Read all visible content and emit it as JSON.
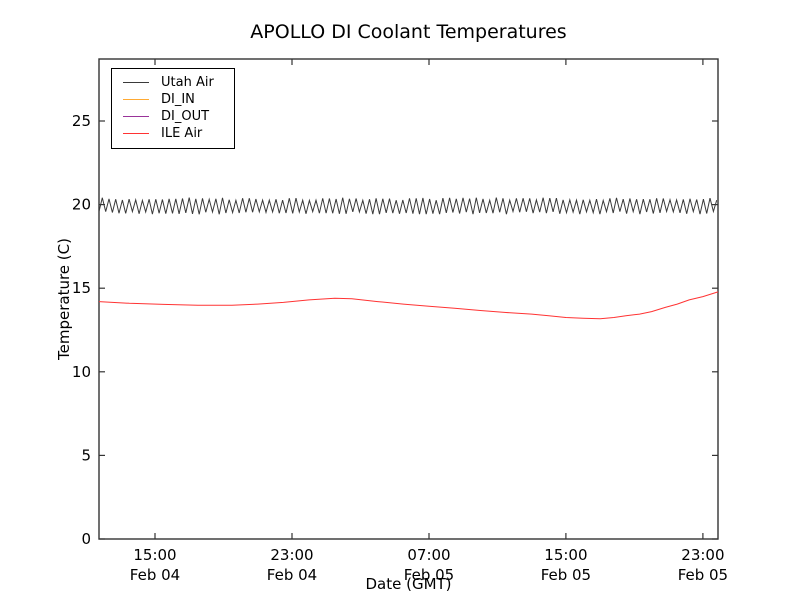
{
  "chart_data": {
    "type": "line",
    "title": "APOLLO DI Coolant Temperatures",
    "xlabel": "Date (GMT)",
    "ylabel": "Temperature (C)",
    "x_axis_unit": "hours since Feb 04 00:00 GMT",
    "xlim": [
      11.73,
      47.88
    ],
    "ylim": [
      0,
      28.71
    ],
    "grid": false,
    "legend_position": "upper left",
    "yticks": [
      0,
      5,
      10,
      15,
      20,
      25
    ],
    "xticks": [
      {
        "value": 15,
        "time": "15:00",
        "date": "Feb 04"
      },
      {
        "value": 23,
        "time": "23:00",
        "date": "Feb 04"
      },
      {
        "value": 31,
        "time": "07:00",
        "date": "Feb 05"
      },
      {
        "value": 39,
        "time": "15:00",
        "date": "Feb 05"
      },
      {
        "value": 47,
        "time": "23:00",
        "date": "Feb 05"
      }
    ],
    "series": [
      {
        "name": "Utah Air",
        "color": "#3a3a3a",
        "visible_in_plot": true,
        "pattern": "sawtooth-oscillation",
        "mean": 19.92,
        "amplitude_min": 0.33,
        "amplitude_max": 0.5,
        "period_hours": 0.39,
        "x_start": 11.73,
        "x_end": 47.88
      },
      {
        "name": "DI_IN",
        "color": "#ffaa33",
        "visible_in_plot": false,
        "x": [],
        "y": []
      },
      {
        "name": "DI_OUT",
        "color": "#993399",
        "visible_in_plot": false,
        "x": [],
        "y": []
      },
      {
        "name": "ILE Air",
        "color": "#ff3333",
        "visible_in_plot": true,
        "x": [
          11.73,
          13.5,
          15.5,
          17.5,
          19.5,
          21,
          22.5,
          24,
          25.5,
          26.5,
          28,
          29.5,
          31,
          32.5,
          34,
          35.5,
          37,
          38,
          39,
          40,
          41,
          41.8,
          42.5,
          43.3,
          44,
          44.8,
          45.5,
          46.2,
          47,
          47.88
        ],
        "y": [
          14.2,
          14.1,
          14.03,
          13.98,
          13.98,
          14.05,
          14.15,
          14.3,
          14.4,
          14.37,
          14.2,
          14.05,
          13.92,
          13.8,
          13.67,
          13.55,
          13.45,
          13.35,
          13.25,
          13.2,
          13.17,
          13.25,
          13.35,
          13.45,
          13.6,
          13.85,
          14.05,
          14.3,
          14.5,
          14.78
        ]
      }
    ]
  }
}
